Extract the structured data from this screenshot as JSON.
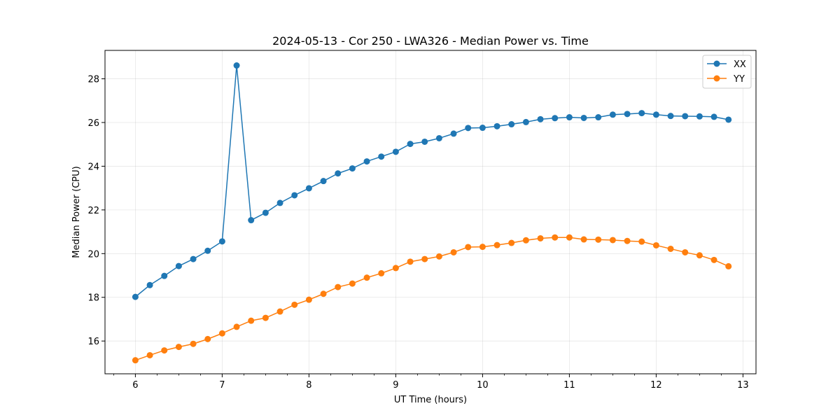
{
  "chart_data": {
    "type": "line",
    "title": "2024-05-13 - Cor 250 - LWA326 - Median Power vs. Time",
    "xlabel": "UT Time (hours)",
    "ylabel": "Median Power (CPU)",
    "xlim": [
      5.65,
      13.15
    ],
    "ylim": [
      14.5,
      29.3
    ],
    "xticks": [
      6,
      7,
      8,
      9,
      10,
      11,
      12,
      13
    ],
    "yticks": [
      16,
      18,
      20,
      22,
      24,
      26,
      28
    ],
    "grid": true,
    "legend_position": "top-right",
    "x": [
      6.0,
      6.1667,
      6.3333,
      6.5,
      6.6667,
      6.8333,
      7.0,
      7.1667,
      7.3333,
      7.5,
      7.6667,
      7.8333,
      8.0,
      8.1667,
      8.3333,
      8.5,
      8.6667,
      8.8333,
      9.0,
      9.1667,
      9.3333,
      9.5,
      9.6667,
      9.8333,
      10.0,
      10.1667,
      10.3333,
      10.5,
      10.6667,
      10.8333,
      11.0,
      11.1667,
      11.3333,
      11.5,
      11.6667,
      11.8333,
      12.0,
      12.1667,
      12.3333,
      12.5,
      12.6667,
      12.8333
    ],
    "series": [
      {
        "name": "XX",
        "color": "#1f77b4",
        "values": [
          18.02,
          18.56,
          18.98,
          19.43,
          19.75,
          20.13,
          20.56,
          28.61,
          21.53,
          21.87,
          22.32,
          22.67,
          22.99,
          23.32,
          23.67,
          23.9,
          24.22,
          24.44,
          24.66,
          25.02,
          25.12,
          25.28,
          25.49,
          25.75,
          25.76,
          25.83,
          25.92,
          26.02,
          26.15,
          26.2,
          26.24,
          26.21,
          26.24,
          26.36,
          26.39,
          26.43,
          26.36,
          26.3,
          26.29,
          26.28,
          26.26,
          26.13
        ]
      },
      {
        "name": "YY",
        "color": "#ff7f0e",
        "values": [
          15.12,
          15.35,
          15.57,
          15.73,
          15.87,
          16.09,
          16.35,
          16.65,
          16.93,
          17.06,
          17.35,
          17.66,
          17.89,
          18.16,
          18.47,
          18.63,
          18.9,
          19.1,
          19.34,
          19.63,
          19.75,
          19.87,
          20.06,
          20.3,
          20.31,
          20.39,
          20.49,
          20.61,
          20.7,
          20.74,
          20.74,
          20.65,
          20.64,
          20.62,
          20.58,
          20.55,
          20.38,
          20.22,
          20.06,
          19.92,
          19.71,
          19.42
        ]
      }
    ]
  }
}
